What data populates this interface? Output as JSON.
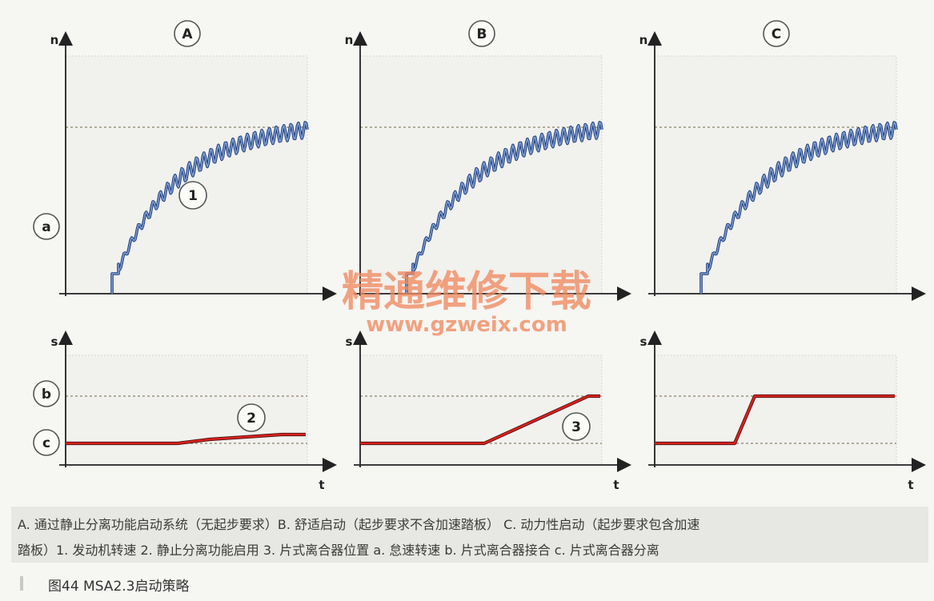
{
  "panels": [
    {
      "label": "A",
      "callout_top": "1",
      "callout_bottom": "2",
      "clutch": "slow"
    },
    {
      "label": "B",
      "callout_bottom": "3",
      "clutch": "ramp"
    },
    {
      "label": "C",
      "clutch": "step"
    }
  ],
  "axis_labels": {
    "top_y": "n",
    "bottom_y": "s",
    "bottom_x": "t"
  },
  "levels": {
    "a": "a",
    "b": "b",
    "c": "c"
  },
  "watermark": {
    "line1": "精通维修下载",
    "line2": "www.gzweix.com"
  },
  "caption": {
    "line1": "A. 通过静止分离功能启动系统（无起步要求）B. 舒适启动（起步要求不含加速踏板） C. 动力性启动（起步要求包含加速",
    "line2": "踏板）1. 发动机转速  2. 静止分离功能启用  3. 片式离合器位置  a. 怠速转速  b. 片式离合器接合  c. 片式离合器分离"
  },
  "figure_title": "图44    MSA2.3启动策略",
  "colors": {
    "rpm_curve": "#3b5fa8",
    "clutch_curve": "#d8211c",
    "watermark": "#f08a60"
  }
}
